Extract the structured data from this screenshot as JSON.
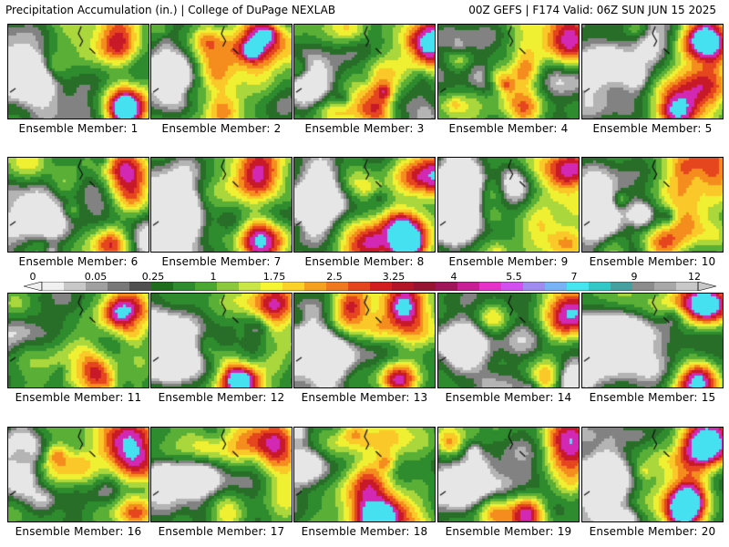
{
  "header": {
    "left": "Precipitation Accumulation (in.) | College of DuPage NEXLAB",
    "right": "00Z GEFS | F174 Valid: 06Z SUN JUN 15 2025"
  },
  "members": [
    {
      "label": "Ensemble Member: 1"
    },
    {
      "label": "Ensemble Member: 2"
    },
    {
      "label": "Ensemble Member: 3"
    },
    {
      "label": "Ensemble Member: 4"
    },
    {
      "label": "Ensemble Member: 5"
    },
    {
      "label": "Ensemble Member: 6"
    },
    {
      "label": "Ensemble Member: 7"
    },
    {
      "label": "Ensemble Member: 8"
    },
    {
      "label": "Ensemble Member: 9"
    },
    {
      "label": "Ensemble Member: 10"
    },
    {
      "label": "Ensemble Member: 11"
    },
    {
      "label": "Ensemble Member: 12"
    },
    {
      "label": "Ensemble Member: 13"
    },
    {
      "label": "Ensemble Member: 14"
    },
    {
      "label": "Ensemble Member: 15"
    },
    {
      "label": "Ensemble Member: 16"
    },
    {
      "label": "Ensemble Member: 17"
    },
    {
      "label": "Ensemble Member: 18"
    },
    {
      "label": "Ensemble Member: 19"
    },
    {
      "label": "Ensemble Member: 20"
    }
  ],
  "colorbar": {
    "ticks": [
      "0",
      "0.05",
      "0.25",
      "1",
      "1.75",
      "2.5",
      "3.25",
      "4",
      "5.5",
      "7",
      "9",
      "12"
    ],
    "colors": [
      "#f0f0f0",
      "#c8c8c8",
      "#a0a0a0",
      "#787878",
      "#505050",
      "#1e6e1e",
      "#2e8b2e",
      "#4aa832",
      "#8cc83c",
      "#c8e646",
      "#f5f532",
      "#fad228",
      "#f5a01e",
      "#f0781e",
      "#e6461e",
      "#d21e1e",
      "#b41428",
      "#961432",
      "#a0145a",
      "#c81e96",
      "#e632c8",
      "#d250f0",
      "#a08cf0",
      "#78b4f5",
      "#46e6f0",
      "#32c8c8",
      "#46a0a0",
      "#8c8c8c",
      "#a8a8a8",
      "#c8c8c8"
    ]
  }
}
